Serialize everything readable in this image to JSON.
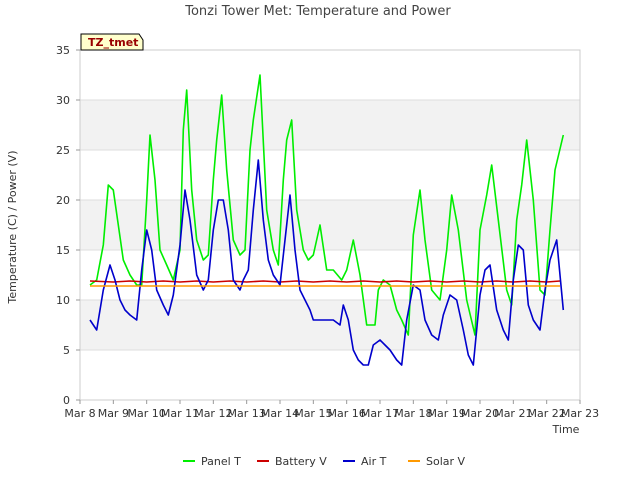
{
  "chart_data": {
    "type": "line",
    "title": "Tonzi Tower Met: Temperature and Power",
    "badge": "TZ_tmet",
    "xlabel": "Time",
    "ylabel": "Temperature (C) / Power (V)",
    "xlim": [
      8,
      23
    ],
    "ylim": [
      0,
      35
    ],
    "yticks": [
      0,
      5,
      10,
      15,
      20,
      25,
      30,
      35
    ],
    "xticks": [
      8,
      9,
      10,
      11,
      12,
      13,
      14,
      15,
      16,
      17,
      18,
      19,
      20,
      21,
      22,
      23
    ],
    "xtick_labels": [
      "Mar 8",
      "Mar 9",
      "Mar 10",
      "Mar 11",
      "Mar 12",
      "Mar 13",
      "Mar 14",
      "Mar 15",
      "Mar 16",
      "Mar 17",
      "Mar 18",
      "Mar 19",
      "Mar 20",
      "Mar 21",
      "Mar 22",
      "Mar 23"
    ],
    "series": [
      {
        "name": "Panel T",
        "color": "#00ee00",
        "x": [
          8.3,
          8.5,
          8.7,
          8.85,
          9.0,
          9.15,
          9.3,
          9.5,
          9.7,
          9.85,
          10.0,
          10.1,
          10.25,
          10.4,
          10.6,
          10.8,
          11.0,
          11.1,
          11.2,
          11.35,
          11.5,
          11.7,
          11.85,
          12.0,
          12.1,
          12.25,
          12.4,
          12.6,
          12.8,
          12.95,
          13.1,
          13.2,
          13.4,
          13.6,
          13.8,
          13.95,
          14.1,
          14.2,
          14.35,
          14.5,
          14.7,
          14.85,
          15.0,
          15.2,
          15.4,
          15.6,
          15.85,
          16.0,
          16.2,
          16.4,
          16.6,
          16.85,
          16.95,
          17.1,
          17.3,
          17.5,
          17.65,
          17.85,
          18.0,
          18.2,
          18.35,
          18.55,
          18.8,
          19.0,
          19.15,
          19.35,
          19.6,
          19.85,
          20.0,
          20.2,
          20.35,
          20.55,
          20.8,
          20.95,
          21.1,
          21.25,
          21.4,
          21.6,
          21.8,
          21.95,
          22.1,
          22.25,
          22.5
        ],
        "y": [
          11.5,
          12.0,
          15.5,
          21.5,
          21.0,
          17.5,
          14.0,
          12.5,
          11.5,
          11.5,
          20.0,
          26.5,
          22.0,
          15.0,
          13.5,
          12.0,
          15.0,
          27.0,
          31.0,
          21.0,
          16.0,
          14.0,
          14.5,
          22.0,
          26.0,
          30.5,
          23.0,
          16.0,
          14.5,
          15.0,
          25.0,
          28.0,
          32.5,
          19.0,
          15.0,
          13.5,
          22.0,
          26.0,
          28.0,
          19.0,
          15.0,
          14.0,
          14.5,
          17.5,
          13.0,
          13.0,
          12.0,
          13.0,
          16.0,
          12.5,
          7.5,
          7.5,
          11.0,
          12.0,
          11.5,
          9.0,
          8.0,
          6.5,
          16.5,
          21.0,
          16.0,
          11.0,
          10.0,
          15.0,
          20.5,
          17.0,
          10.0,
          6.5,
          17.0,
          20.5,
          23.5,
          18.0,
          11.0,
          9.5,
          18.0,
          21.5,
          26.0,
          20.0,
          11.0,
          10.5,
          17.0,
          23.0,
          26.5
        ]
      },
      {
        "name": "Battery V",
        "color": "#cc0000",
        "x": [
          8.3,
          9.0,
          9.5,
          10.0,
          10.5,
          11.0,
          11.5,
          12.0,
          12.5,
          13.0,
          13.5,
          14.0,
          14.5,
          15.0,
          15.5,
          16.0,
          16.5,
          17.0,
          17.5,
          18.0,
          18.5,
          19.0,
          19.5,
          20.0,
          20.5,
          21.0,
          21.5,
          22.0,
          22.4
        ],
        "y": [
          11.9,
          11.8,
          11.9,
          11.8,
          11.9,
          11.8,
          11.9,
          11.8,
          11.9,
          11.8,
          11.9,
          11.8,
          11.9,
          11.8,
          11.9,
          11.8,
          11.9,
          11.8,
          11.9,
          11.8,
          11.9,
          11.8,
          11.9,
          11.8,
          11.9,
          11.8,
          11.9,
          11.8,
          11.9
        ]
      },
      {
        "name": "Air T",
        "color": "#0000cc",
        "x": [
          8.3,
          8.5,
          8.7,
          8.9,
          9.05,
          9.2,
          9.35,
          9.5,
          9.7,
          9.85,
          10.0,
          10.15,
          10.3,
          10.5,
          10.65,
          10.8,
          11.0,
          11.15,
          11.3,
          11.5,
          11.7,
          11.85,
          12.0,
          12.15,
          12.3,
          12.45,
          12.6,
          12.8,
          12.9,
          13.05,
          13.2,
          13.35,
          13.5,
          13.65,
          13.8,
          14.0,
          14.15,
          14.3,
          14.45,
          14.6,
          14.75,
          14.9,
          15.0,
          15.2,
          15.4,
          15.6,
          15.8,
          15.9,
          16.05,
          16.2,
          16.35,
          16.5,
          16.65,
          16.8,
          17.0,
          17.15,
          17.3,
          17.5,
          17.65,
          17.8,
          18.0,
          18.2,
          18.35,
          18.55,
          18.75,
          18.9,
          19.1,
          19.3,
          19.5,
          19.65,
          19.8,
          20.0,
          20.15,
          20.3,
          20.5,
          20.7,
          20.85,
          21.0,
          21.15,
          21.3,
          21.45,
          21.6,
          21.8,
          21.95,
          22.1,
          22.3,
          22.5
        ],
        "y": [
          8.0,
          7.0,
          11.0,
          13.5,
          12.0,
          10.0,
          9.0,
          8.5,
          8.0,
          13.0,
          17.0,
          15.0,
          11.0,
          9.5,
          8.5,
          10.5,
          15.5,
          21.0,
          18.0,
          12.5,
          11.0,
          12.0,
          17.0,
          20.0,
          20.0,
          17.0,
          12.0,
          11.0,
          12.0,
          13.0,
          19.0,
          24.0,
          18.0,
          14.0,
          12.5,
          11.5,
          16.0,
          20.5,
          15.0,
          11.0,
          10.0,
          9.0,
          8.0,
          8.0,
          8.0,
          8.0,
          7.5,
          9.5,
          8.0,
          5.0,
          4.0,
          3.5,
          3.5,
          5.5,
          6.0,
          5.5,
          5.0,
          4.0,
          3.5,
          8.0,
          11.5,
          11.0,
          8.0,
          6.5,
          6.0,
          8.5,
          10.5,
          10.0,
          7.0,
          4.5,
          3.5,
          10.5,
          13.0,
          13.5,
          9.0,
          7.0,
          6.0,
          12.0,
          15.5,
          15.0,
          9.5,
          8.0,
          7.0,
          11.0,
          14.0,
          16.0,
          9.0
        ]
      },
      {
        "name": "Solar V",
        "color": "#ff9900",
        "x": [
          8.3,
          9.0,
          10.0,
          11.0,
          12.0,
          13.0,
          14.0,
          15.0,
          16.0,
          17.0,
          18.0,
          19.0,
          20.0,
          21.0,
          22.0,
          22.4
        ],
        "y": [
          11.4,
          11.4,
          11.4,
          11.4,
          11.4,
          11.4,
          11.4,
          11.4,
          11.4,
          11.4,
          11.4,
          11.4,
          11.4,
          11.4,
          11.4,
          11.4
        ]
      }
    ]
  }
}
